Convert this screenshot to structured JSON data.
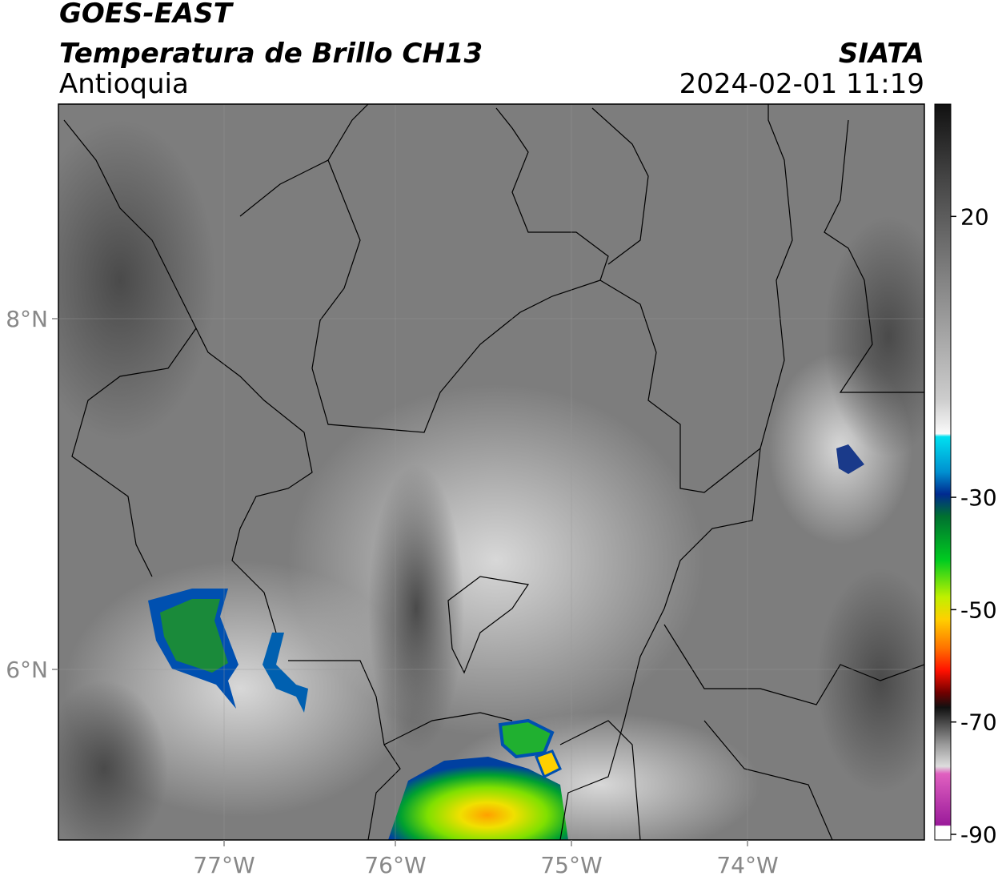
{
  "header": {
    "title": "GOES-EAST",
    "subtitle": "Temperatura de Brillo CH13",
    "region": "Antioquia",
    "source": "SIATA",
    "datetime": "2024-02-01 11:19"
  },
  "map": {
    "lat_ticks": [
      "8°N",
      "6°N"
    ],
    "lon_ticks": [
      "77°W",
      "76°W",
      "75°W",
      "74°W"
    ]
  },
  "colorbar": {
    "limits": [
      -91,
      40
    ],
    "ticks": [
      20,
      -30,
      -50,
      -70,
      -90
    ]
  }
}
